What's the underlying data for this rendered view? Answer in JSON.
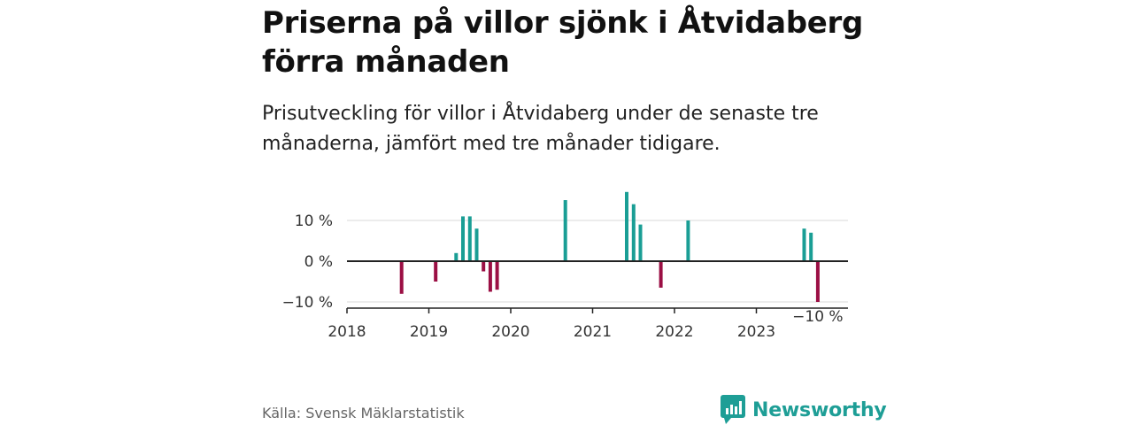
{
  "title": "Priserna på villor sjönk i Åtvidaberg förra månaden",
  "subtitle": "Prisutveckling för villor i Åtvidaberg under de senaste tre månaderna, jämfört med tre månader tidigare.",
  "source": "Källa: Svensk Mäklarstatistik",
  "brand": "Newsworthy",
  "colors": {
    "positive": "#1a9e95",
    "negative": "#9b0f44",
    "brand": "#1e9e96",
    "grid": "#d9d9d9",
    "baseline": "#222222"
  },
  "chart_data": {
    "type": "bar",
    "title": "",
    "xlabel": "",
    "ylabel": "",
    "x_ticks": [
      "2018",
      "2019",
      "2020",
      "2021",
      "2022",
      "2023"
    ],
    "y_ticks": [
      {
        "value": 10,
        "label": "10 %"
      },
      {
        "value": 0,
        "label": "0 %"
      },
      {
        "value": -10,
        "label": "−10 %"
      }
    ],
    "ylim": [
      -10,
      17
    ],
    "xlim": [
      "2018-01",
      "2023-12"
    ],
    "grid": true,
    "annotation": {
      "date": "2023-10",
      "label": "−10 %"
    },
    "points": [
      {
        "date": "2018-09",
        "value": -8
      },
      {
        "date": "2019-02",
        "value": -5
      },
      {
        "date": "2019-05",
        "value": 2
      },
      {
        "date": "2019-06",
        "value": 11
      },
      {
        "date": "2019-07",
        "value": 11
      },
      {
        "date": "2019-08",
        "value": 8
      },
      {
        "date": "2019-09",
        "value": -2.5
      },
      {
        "date": "2019-10",
        "value": -7.5
      },
      {
        "date": "2019-11",
        "value": -7
      },
      {
        "date": "2020-09",
        "value": 15
      },
      {
        "date": "2021-06",
        "value": 17
      },
      {
        "date": "2021-07",
        "value": 14
      },
      {
        "date": "2021-08",
        "value": 9
      },
      {
        "date": "2021-11",
        "value": -6.5
      },
      {
        "date": "2022-03",
        "value": 10
      },
      {
        "date": "2023-08",
        "value": 8
      },
      {
        "date": "2023-09",
        "value": 7
      },
      {
        "date": "2023-10",
        "value": -10
      }
    ]
  }
}
